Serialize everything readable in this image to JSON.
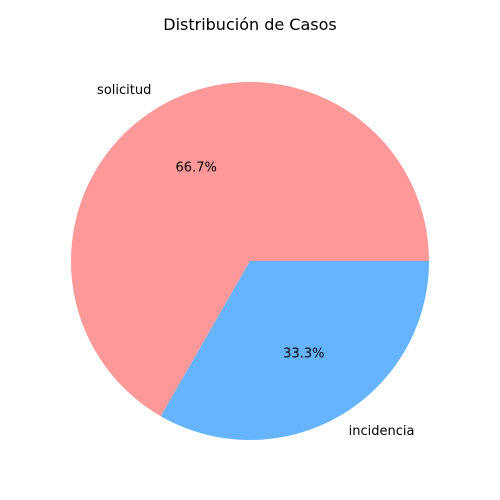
{
  "chart_data": {
    "type": "pie",
    "title": "Distribución de Casos",
    "labels": [
      "solicitud",
      "incidencia"
    ],
    "values": [
      66.7,
      33.3
    ],
    "value_labels": [
      "66.7%",
      "33.3%"
    ],
    "colors": [
      "#ff9999",
      "#66b3ff"
    ],
    "start_angle_deg": 0,
    "direction": "counterclockwise",
    "legend": "none"
  }
}
